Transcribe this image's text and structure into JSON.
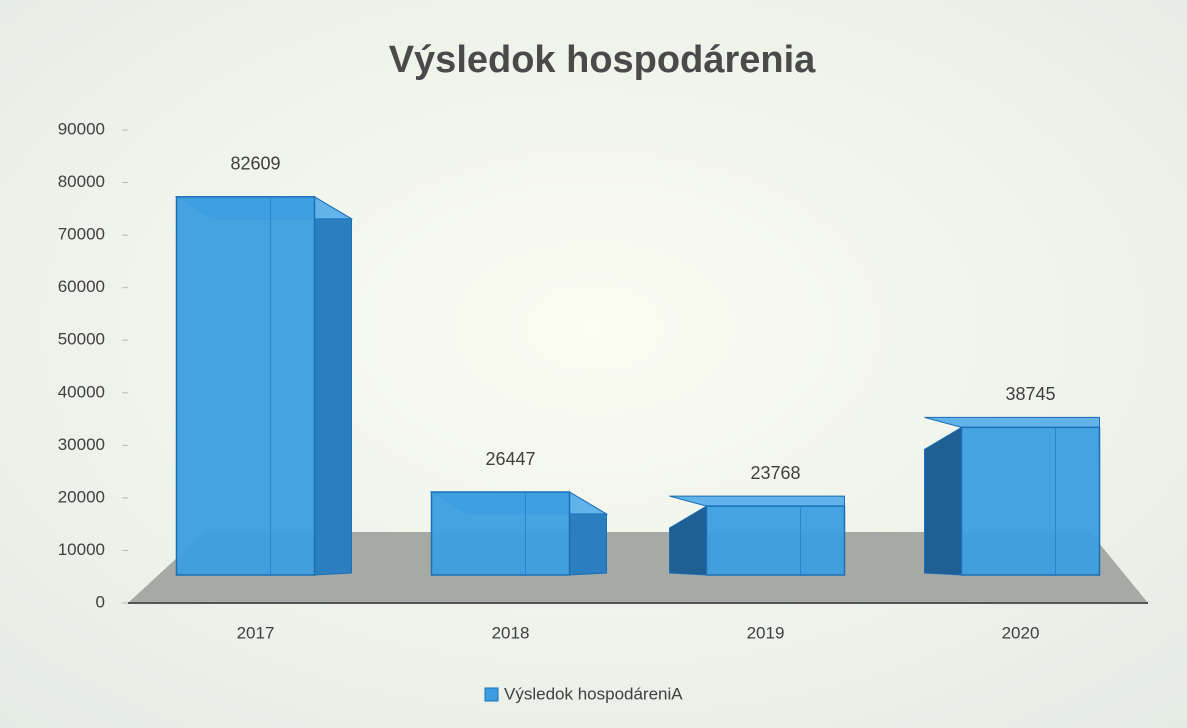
{
  "chart_data": {
    "type": "bar3d",
    "title": "Výsledok hospodárenia",
    "categories": [
      "2017",
      "2018",
      "2019",
      "2020"
    ],
    "series": [
      {
        "name": "Výsledok hospodáreniA",
        "color": "#3c9ee0",
        "values": [
          82609,
          26447,
          23768,
          38745
        ]
      }
    ],
    "ylim": [
      0,
      90000
    ],
    "yticks": [
      0,
      10000,
      20000,
      30000,
      40000,
      50000,
      60000,
      70000,
      80000,
      90000
    ],
    "legend": "bottom"
  }
}
